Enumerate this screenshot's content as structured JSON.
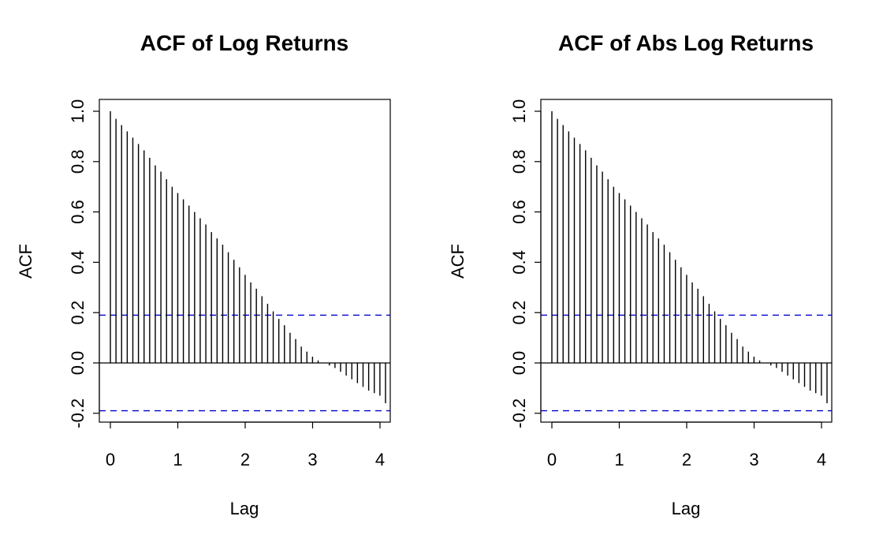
{
  "chart_data": [
    {
      "type": "bar",
      "title": "ACF of Log Returns",
      "xlabel": "Lag",
      "ylabel": "ACF",
      "xlim": [
        0,
        4
      ],
      "ylim": [
        -0.2,
        1.0
      ],
      "x_ticks": [
        0,
        1,
        2,
        3,
        4
      ],
      "y_ticks": [
        -0.2,
        0.0,
        0.2,
        0.4,
        0.6,
        0.8,
        1.0
      ],
      "x_tick_labels": [
        "0",
        "1",
        "2",
        "3",
        "4"
      ],
      "y_tick_labels": [
        "-0.2",
        "0.0",
        "0.2",
        "0.4",
        "0.6",
        "0.8",
        "1.0"
      ],
      "lag_step": 0.0833,
      "values": [
        1.0,
        0.97,
        0.945,
        0.92,
        0.895,
        0.87,
        0.845,
        0.815,
        0.785,
        0.76,
        0.73,
        0.7,
        0.675,
        0.65,
        0.625,
        0.6,
        0.575,
        0.55,
        0.52,
        0.495,
        0.47,
        0.44,
        0.41,
        0.38,
        0.35,
        0.32,
        0.295,
        0.265,
        0.235,
        0.205,
        0.175,
        0.15,
        0.12,
        0.095,
        0.065,
        0.045,
        0.025,
        0.01,
        0.0,
        -0.01,
        -0.02,
        -0.035,
        -0.05,
        -0.065,
        -0.08,
        -0.095,
        -0.11,
        -0.12,
        -0.13,
        -0.16
      ],
      "confidence_bound": 0.19,
      "confidence_color": "#0000cc",
      "bar_color": "#000000",
      "grid": false
    },
    {
      "type": "bar",
      "title": "ACF of Abs Log Returns",
      "xlabel": "Lag",
      "ylabel": "ACF",
      "xlim": [
        0,
        4
      ],
      "ylim": [
        -0.2,
        1.0
      ],
      "x_ticks": [
        0,
        1,
        2,
        3,
        4
      ],
      "y_ticks": [
        -0.2,
        0.0,
        0.2,
        0.4,
        0.6,
        0.8,
        1.0
      ],
      "x_tick_labels": [
        "0",
        "1",
        "2",
        "3",
        "4"
      ],
      "y_tick_labels": [
        "-0.2",
        "0.0",
        "0.2",
        "0.4",
        "0.6",
        "0.8",
        "1.0"
      ],
      "lag_step": 0.0833,
      "values": [
        1.0,
        0.97,
        0.945,
        0.92,
        0.895,
        0.87,
        0.845,
        0.815,
        0.785,
        0.76,
        0.73,
        0.7,
        0.675,
        0.65,
        0.625,
        0.6,
        0.575,
        0.55,
        0.52,
        0.495,
        0.47,
        0.44,
        0.41,
        0.38,
        0.35,
        0.32,
        0.295,
        0.265,
        0.235,
        0.205,
        0.175,
        0.15,
        0.12,
        0.095,
        0.065,
        0.045,
        0.025,
        0.01,
        0.0,
        -0.01,
        -0.02,
        -0.035,
        -0.05,
        -0.065,
        -0.08,
        -0.095,
        -0.11,
        -0.12,
        -0.13,
        -0.16
      ],
      "confidence_bound": 0.19,
      "confidence_color": "#0000cc",
      "bar_color": "#000000",
      "grid": false
    }
  ]
}
